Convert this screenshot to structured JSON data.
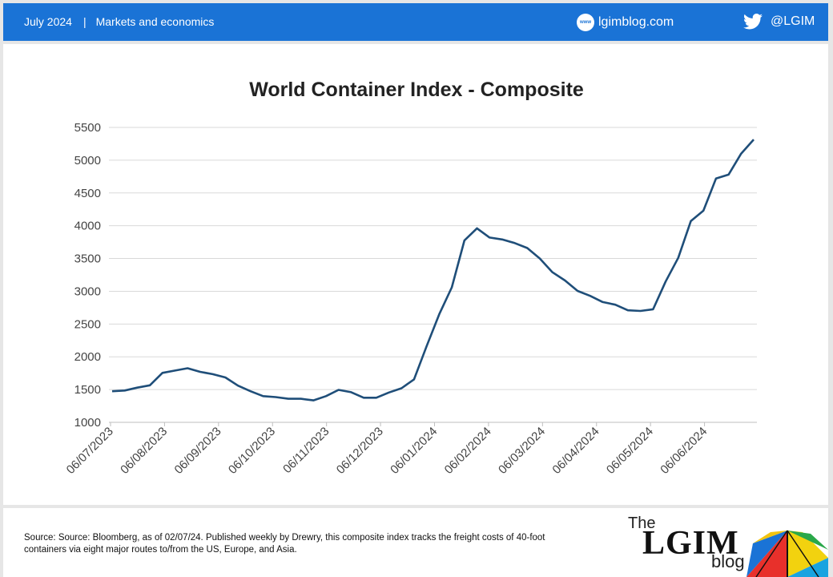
{
  "header": {
    "date": "July 2024",
    "separator": "|",
    "category": "Markets and economics",
    "website": "lgimblog.com",
    "website_icon": "www",
    "twitter_handle": "@LGIM",
    "icons": {
      "web": "globe-www-icon",
      "twitter": "twitter-bird-icon"
    },
    "colors": {
      "bar": "#1a73d6"
    }
  },
  "chart_data": {
    "type": "line",
    "title": "World Container Index - Composite",
    "xlabel": "",
    "ylabel": "",
    "ylim": [
      1000,
      5500
    ],
    "yticks": [
      1000,
      1500,
      2000,
      2500,
      3000,
      3500,
      4000,
      4500,
      5000,
      5500
    ],
    "xtick_labels": [
      "06/07/2023",
      "06/08/2023",
      "06/09/2023",
      "06/10/2023",
      "06/11/2023",
      "06/12/2023",
      "06/01/2024",
      "06/02/2024",
      "06/03/2024",
      "06/04/2024",
      "06/05/2024",
      "06/06/2024"
    ],
    "grid": "horizontal",
    "line_color": "#1f4e79",
    "series": [
      {
        "values": [
          1475,
          1485,
          1530,
          1565,
          1755,
          1790,
          1825,
          1770,
          1735,
          1685,
          1560,
          1475,
          1400,
          1385,
          1360,
          1360,
          1335,
          1400,
          1495,
          1460,
          1375,
          1375,
          1455,
          1520,
          1655,
          2160,
          2650,
          3060,
          3775,
          3960,
          3820,
          3790,
          3735,
          3660,
          3500,
          3290,
          3165,
          3005,
          2930,
          2835,
          2795,
          2710,
          2700,
          2725,
          3150,
          3510,
          4070,
          4230,
          4720,
          4780,
          5100,
          5315
        ]
      }
    ]
  },
  "footer": {
    "source": "Source: Source: Bloomberg, as of 02/07/24. Published weekly by Drewry, this composite index tracks the freight costs of 40-foot containers via eight major routes to/from the US, Europe, and Asia.",
    "logo": {
      "the": "The",
      "main": "LGIM",
      "blog": "blog"
    }
  }
}
